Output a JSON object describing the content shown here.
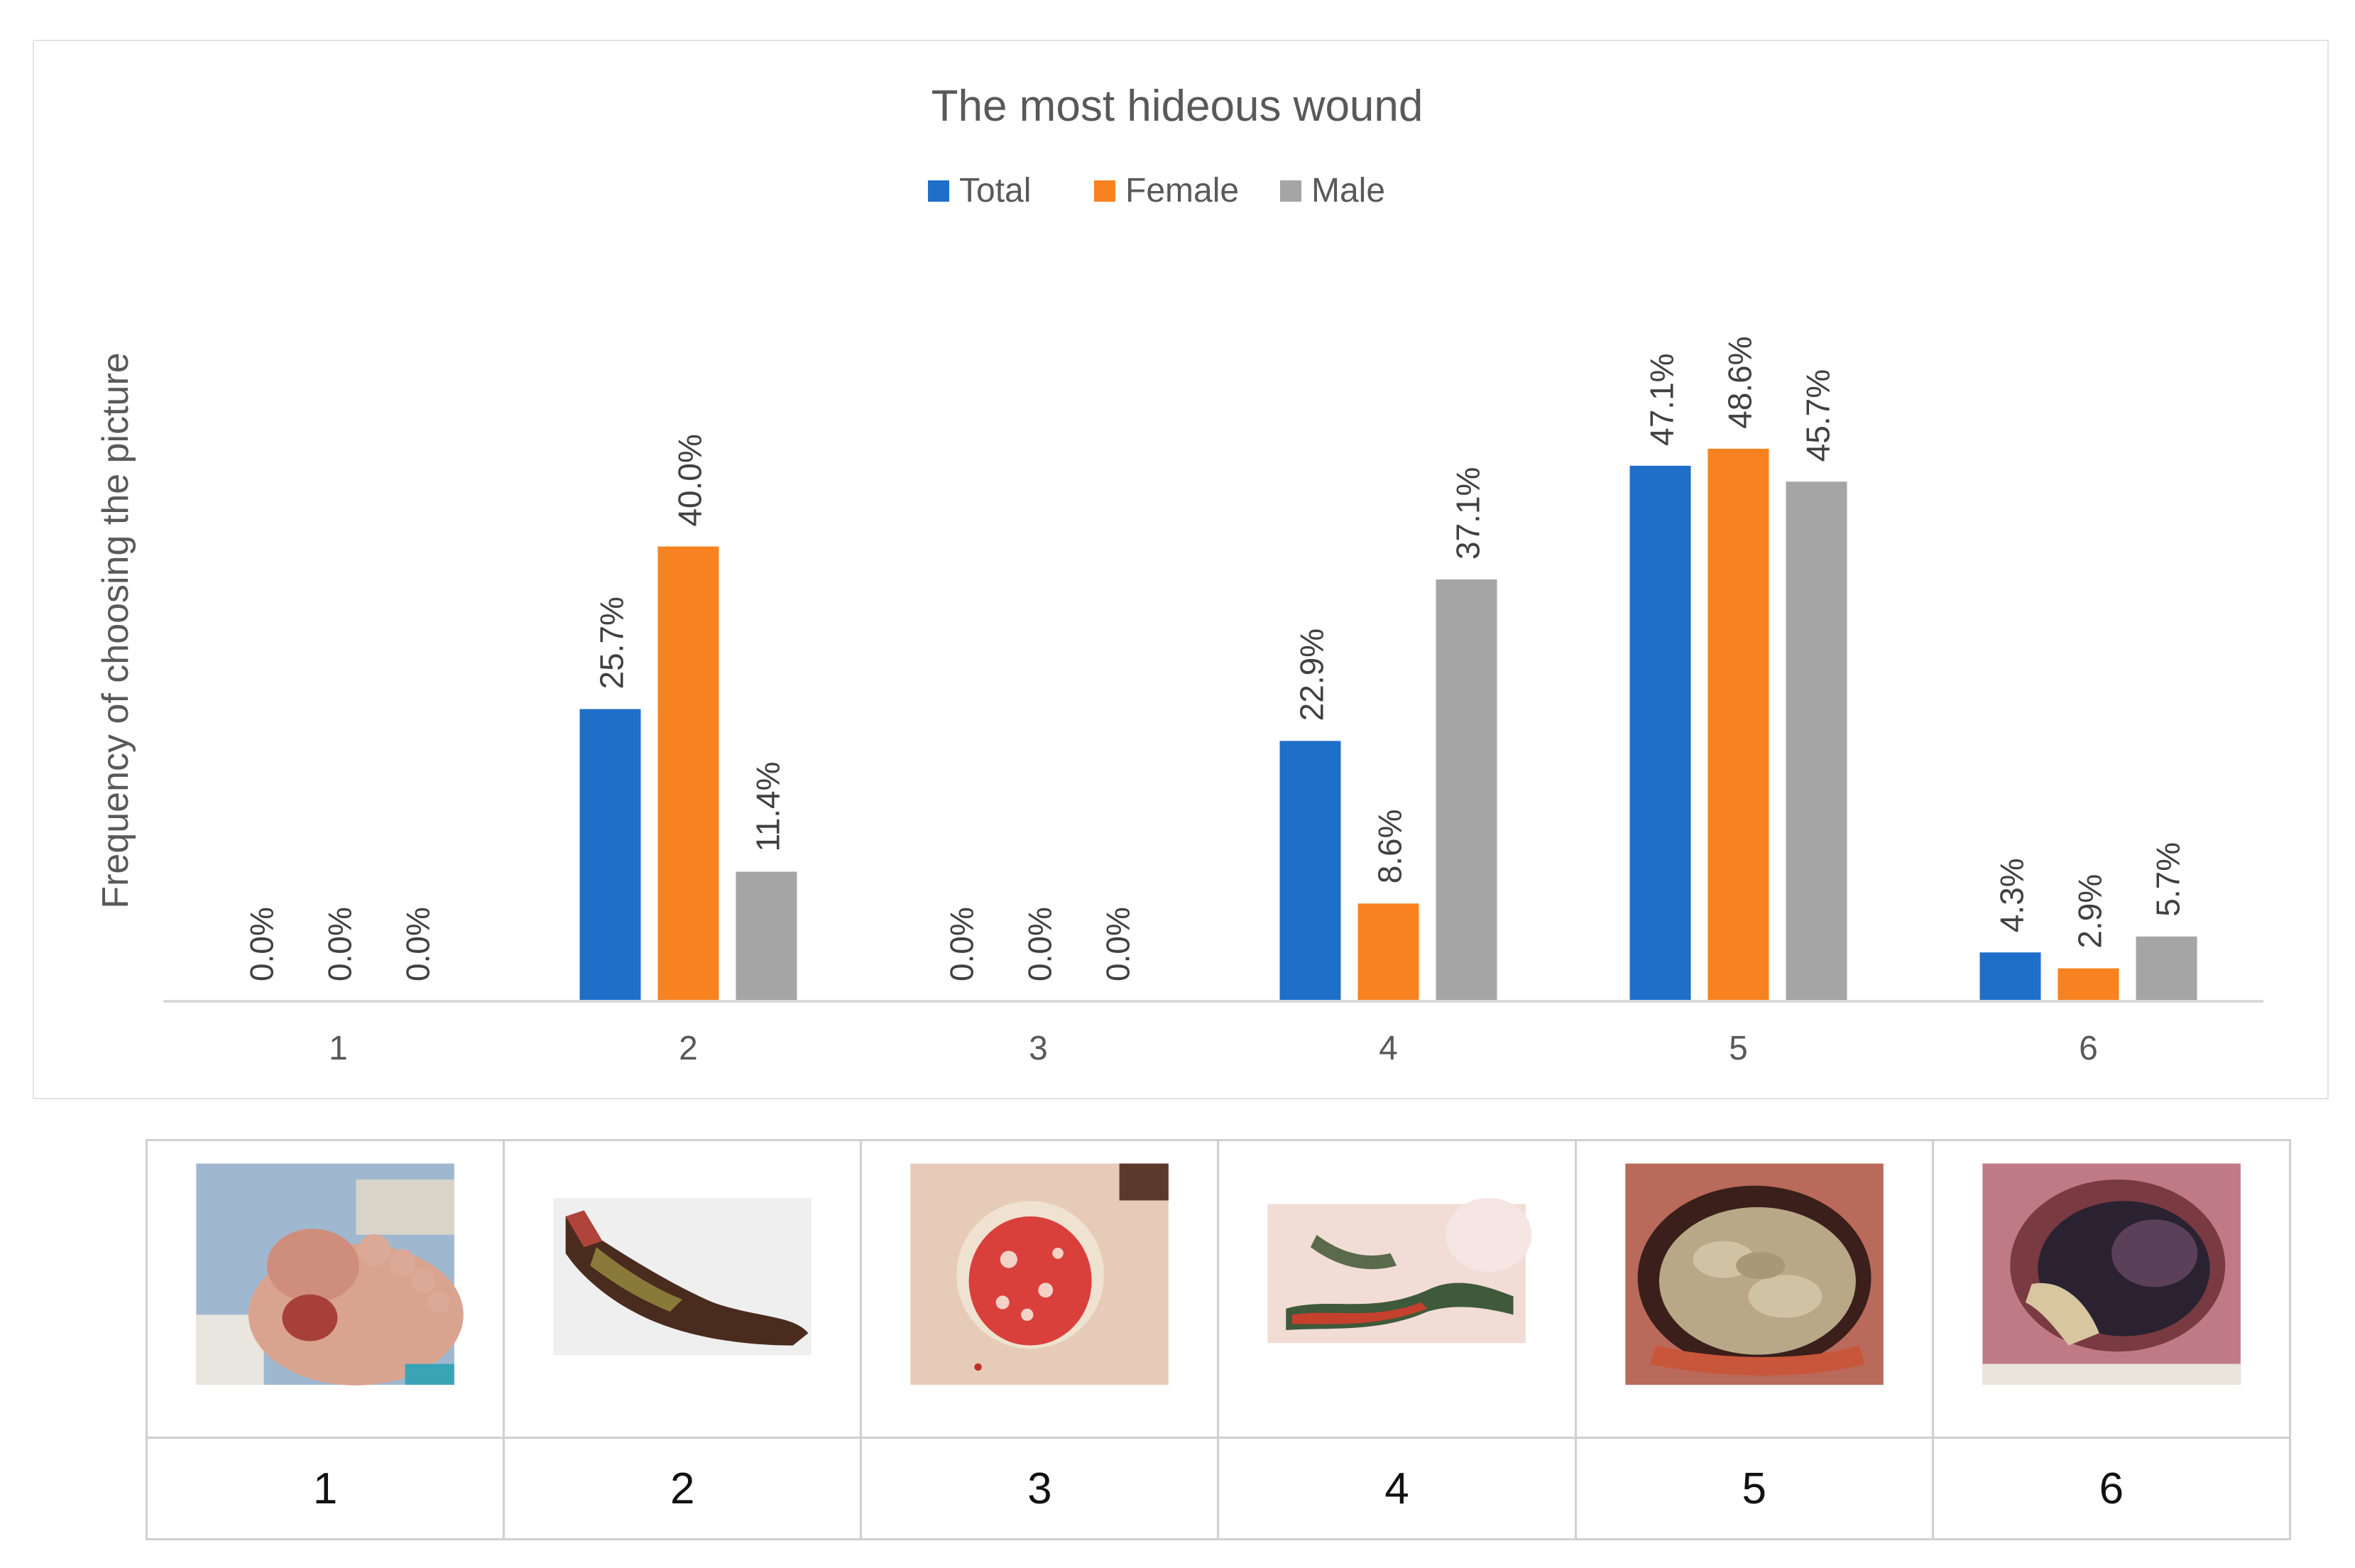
{
  "chart_data": {
    "type": "bar",
    "title": "The most hideous wound",
    "ylabel": "Frequency of choosing the picture",
    "xlabel": "",
    "categories": [
      "1",
      "2",
      "3",
      "4",
      "5",
      "6"
    ],
    "ylim": [
      0,
      60
    ],
    "grid": false,
    "legend_position": "top-center",
    "series": [
      {
        "name": "Total",
        "color": "#1f6fc8",
        "values": [
          0.0,
          25.7,
          0.0,
          22.9,
          47.1,
          4.3
        ],
        "labels": [
          "0.0%",
          "25.7%",
          "0.0%",
          "22.9%",
          "47.1%",
          "4.3%"
        ]
      },
      {
        "name": "Female",
        "color": "#f7821f",
        "values": [
          0.0,
          40.0,
          0.0,
          8.6,
          48.6,
          2.9
        ],
        "labels": [
          "0.0%",
          "40.0%",
          "0.0%",
          "8.6%",
          "48.6%",
          "2.9%"
        ]
      },
      {
        "name": "Male",
        "color": "#a5a5a5",
        "values": [
          0.0,
          11.4,
          0.0,
          37.1,
          45.7,
          5.7
        ],
        "labels": [
          "0.0%",
          "11.4%",
          "0.0%",
          "37.1%",
          "45.7%",
          "5.7%"
        ]
      }
    ]
  },
  "wound_table": {
    "pictures": [
      {
        "number": "1",
        "icon": "foot-wound-photo"
      },
      {
        "number": "2",
        "icon": "leg-necrosis-photo"
      },
      {
        "number": "3",
        "icon": "leg-ulcer-photo"
      },
      {
        "number": "4",
        "icon": "groin-wound-photo"
      },
      {
        "number": "5",
        "icon": "infested-wound-photo"
      },
      {
        "number": "6",
        "icon": "pressure-ulcer-photo"
      }
    ]
  }
}
